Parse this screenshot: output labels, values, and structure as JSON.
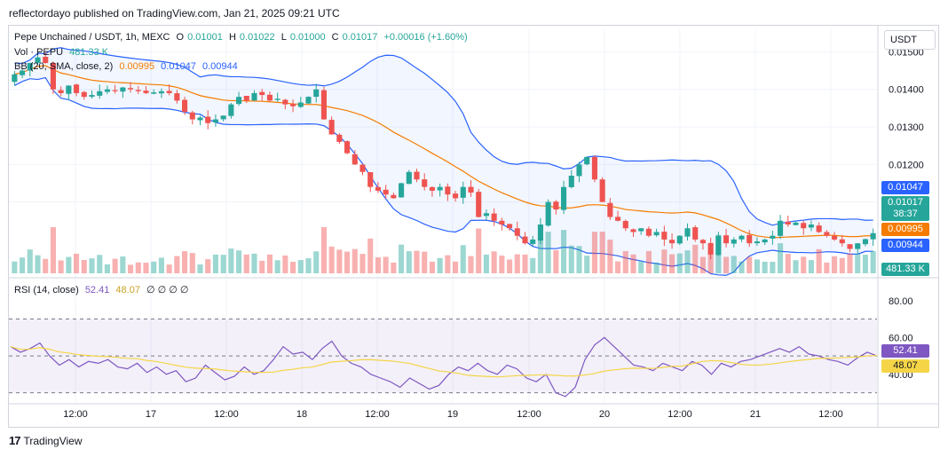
{
  "header": {
    "publisher": "reflectordayo published on TradingView.com, Jan 21, 2025 09:21 UTC"
  },
  "legend": {
    "symbol": "Pepe Unchained / USDT, 1h, MEXC",
    "open_label": "O",
    "open": "0.01001",
    "high_label": "H",
    "high": "0.01022",
    "low_label": "L",
    "low": "0.01000",
    "close_label": "C",
    "close": "0.01017",
    "change": "+0.00016 (+1.60%)",
    "vol_label": "Vol · PEPU",
    "vol_value": "481.33 K",
    "bb_label": "BB (20, SMA, close, 2)",
    "bb_basis": "0.00995",
    "bb_upper": "0.01047",
    "bb_lower": "0.00944",
    "rsi_label": "RSI (14, close)",
    "rsi_value": "52.41",
    "rsi_ma": "48.07",
    "rsi_extra": "∅ ∅ ∅ ∅"
  },
  "axis": {
    "unit": "USDT",
    "price_ticks": [
      "0.01500",
      "0.01400",
      "0.01300",
      "0.01200",
      "0.01100"
    ],
    "rsi_ticks": [
      "80.00",
      "60.00",
      "40.00"
    ],
    "time_ticks": [
      "12:00",
      "17",
      "12:00",
      "18",
      "12:00",
      "19",
      "12:00",
      "20",
      "12:00",
      "21",
      "12:00"
    ]
  },
  "tags": {
    "bb_upper": "0.01047",
    "price": "0.01017",
    "countdown": "38:37",
    "bb_basis": "0.00995",
    "bb_lower": "0.00944",
    "volume": "481.33 K",
    "rsi": "52.41",
    "rsi_ma": "48.07"
  },
  "colors": {
    "up": "#26a69a",
    "down": "#ef5350",
    "basis": "#f57c00",
    "band": "#2962ff",
    "rsi": "#7e57c2",
    "rsi_ma": "#f5d547"
  },
  "footer": {
    "brand": "TradingView"
  },
  "chart_data": {
    "type": "candlestick",
    "x_ticks": [
      "12:00",
      "17",
      "12:00",
      "18",
      "12:00",
      "19",
      "12:00",
      "20",
      "12:00",
      "21",
      "12:00"
    ],
    "ylim": [
      0.0091,
      0.0156
    ],
    "rsi_ylim": [
      25,
      90
    ],
    "rsi_levels": [
      70,
      50,
      30
    ],
    "close_path": [
      0.0144,
      0.0145,
      0.0147,
      0.01485,
      0.0147,
      0.014,
      0.0139,
      0.0141,
      0.0139,
      0.0138,
      0.01385,
      0.01395,
      0.014,
      0.01395,
      0.01405,
      0.014,
      0.01395,
      0.0139,
      0.01392,
      0.01395,
      0.0139,
      0.0137,
      0.0134,
      0.0132,
      0.01325,
      0.0131,
      0.0132,
      0.0133,
      0.0136,
      0.0138,
      0.0137,
      0.0139,
      0.01385,
      0.0137,
      0.01375,
      0.0136,
      0.01355,
      0.01365,
      0.0138,
      0.014,
      0.0132,
      0.0128,
      0.0126,
      0.0123,
      0.012,
      0.0118,
      0.0114,
      0.0113,
      0.0112,
      0.0111,
      0.0115,
      0.0118,
      0.0116,
      0.0114,
      0.0113,
      0.0114,
      0.0112,
      0.0111,
      0.0114,
      0.01125,
      0.0106,
      0.0107,
      0.0105,
      0.0104,
      0.0103,
      0.0101,
      0.0099,
      0.01,
      0.0104,
      0.011,
      0.0108,
      0.0114,
      0.0117,
      0.012,
      0.0122,
      0.0116,
      0.011,
      0.0106,
      0.0105,
      0.0103,
      0.0102,
      0.0103,
      0.0101,
      0.0102,
      0.01,
      0.0099,
      0.0101,
      0.0103,
      0.01,
      0.0099,
      0.0096,
      0.0101,
      0.0099,
      0.01,
      0.0101,
      0.0099,
      0.00995,
      0.01,
      0.0101,
      0.0105,
      0.0104,
      0.01045,
      0.0103,
      0.0104,
      0.0102,
      0.0101,
      0.01,
      0.0099,
      0.00975,
      0.0099,
      0.01001,
      0.01017
    ],
    "rsi_path": [
      55,
      52,
      54,
      57,
      50,
      45,
      48,
      44,
      47,
      46,
      48,
      44,
      43,
      46,
      41,
      44,
      40,
      42,
      36,
      38,
      45,
      41,
      37,
      39,
      44,
      40,
      42,
      48,
      55,
      51,
      52,
      48,
      54,
      58,
      50,
      46,
      44,
      40,
      38,
      36,
      33,
      38,
      35,
      32,
      34,
      40,
      44,
      42,
      46,
      42,
      40,
      45,
      43,
      38,
      36,
      40,
      30,
      28,
      33,
      48,
      56,
      60,
      55,
      50,
      45,
      44,
      42,
      46,
      44,
      42,
      47,
      45,
      40,
      46,
      44,
      47,
      48,
      50,
      52,
      54,
      52,
      55,
      51,
      50,
      48,
      47,
      45,
      49,
      52,
      50
    ]
  }
}
